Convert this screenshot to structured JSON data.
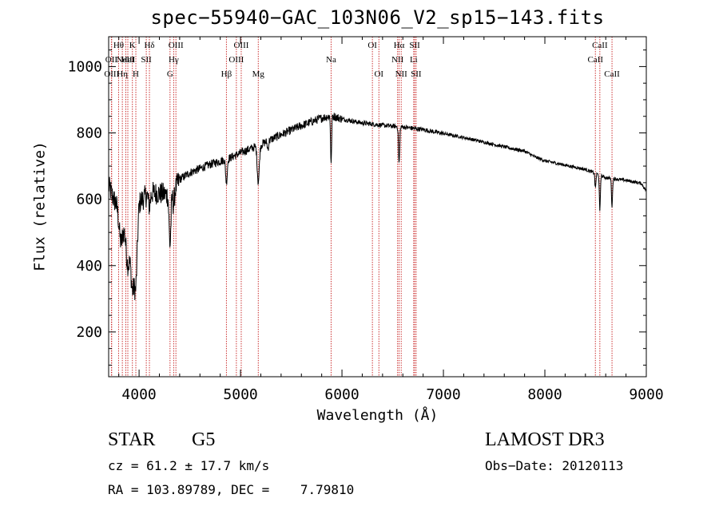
{
  "chart_data": {
    "type": "line",
    "title": "spec−55940−GAC_103N06_V2_sp15−143.fits",
    "xlabel": "Wavelength (Å)",
    "ylabel": "Flux (relative)",
    "xlim": [
      3700,
      9000
    ],
    "ylim": [
      65,
      1090
    ],
    "x_ticks": [
      4000,
      5000,
      6000,
      7000,
      8000,
      9000
    ],
    "x_tick_labels": [
      "4000",
      "5000",
      "6000",
      "7000",
      "8000",
      "9000"
    ],
    "y_ticks": [
      200,
      400,
      600,
      800,
      1000
    ],
    "y_tick_labels": [
      "200",
      "400",
      "600",
      "800",
      "1000"
    ],
    "line_color": "#000000",
    "marker_color": "#cc3333",
    "continuum": [
      [
        3700,
        640
      ],
      [
        3750,
        600
      ],
      [
        3800,
        575
      ],
      [
        3850,
        540
      ],
      [
        3900,
        520
      ],
      [
        3950,
        500
      ],
      [
        4000,
        590
      ],
      [
        4100,
        620
      ],
      [
        4200,
        618
      ],
      [
        4300,
        612
      ],
      [
        4350,
        628
      ],
      [
        4400,
        660
      ],
      [
        4500,
        680
      ],
      [
        4700,
        705
      ],
      [
        4900,
        725
      ],
      [
        5000,
        740
      ],
      [
        5200,
        765
      ],
      [
        5400,
        795
      ],
      [
        5600,
        822
      ],
      [
        5800,
        845
      ],
      [
        5900,
        852
      ],
      [
        6000,
        842
      ],
      [
        6200,
        830
      ],
      [
        6400,
        823
      ],
      [
        6600,
        818
      ],
      [
        6800,
        810
      ],
      [
        7000,
        798
      ],
      [
        7200,
        786
      ],
      [
        7400,
        772
      ],
      [
        7600,
        758
      ],
      [
        7800,
        745
      ],
      [
        7900,
        728
      ],
      [
        8000,
        716
      ],
      [
        8200,
        703
      ],
      [
        8400,
        690
      ],
      [
        8500,
        678
      ],
      [
        8600,
        665
      ],
      [
        8800,
        657
      ],
      [
        8950,
        648
      ],
      [
        9000,
        625
      ]
    ],
    "absorption_lines": [
      {
        "wl": 3820,
        "depth": 90,
        "width": 18
      },
      {
        "wl": 3890,
        "depth": 120,
        "width": 20
      },
      {
        "wl": 3934,
        "depth": 160,
        "width": 14
      },
      {
        "wl": 3968,
        "depth": 190,
        "width": 14
      },
      {
        "wl": 4101,
        "depth": 40,
        "width": 10
      },
      {
        "wl": 4305,
        "depth": 150,
        "width": 9
      },
      {
        "wl": 4340,
        "depth": 40,
        "width": 8
      },
      {
        "wl": 4861,
        "depth": 70,
        "width": 8
      },
      {
        "wl": 5175,
        "depth": 110,
        "width": 10
      },
      {
        "wl": 5270,
        "depth": 25,
        "width": 6
      },
      {
        "wl": 5893,
        "depth": 145,
        "width": 5
      },
      {
        "wl": 6563,
        "depth": 110,
        "width": 6
      },
      {
        "wl": 8498,
        "depth": 45,
        "width": 5
      },
      {
        "wl": 8542,
        "depth": 110,
        "width": 5
      },
      {
        "wl": 8662,
        "depth": 85,
        "width": 5
      }
    ],
    "line_markers": [
      {
        "wl": 3798,
        "label": "Hθ",
        "row": 0
      },
      {
        "wl": 3835,
        "label": "Hη",
        "row": 2
      },
      {
        "wl": 3869,
        "label": "NeIII",
        "row": 1
      },
      {
        "wl": 3889,
        "label": "HeI",
        "row": 1
      },
      {
        "wl": 3934,
        "label": "K",
        "row": 0
      },
      {
        "wl": 3968,
        "label": "H",
        "row": 2
      },
      {
        "wl": 3727,
        "label": "OII",
        "row": 1
      },
      {
        "wl": 3730,
        "label": "OIII",
        "row": 2
      },
      {
        "wl": 4071,
        "label": "SII",
        "row": 1
      },
      {
        "wl": 4102,
        "label": "Hδ",
        "row": 0
      },
      {
        "wl": 4305,
        "label": "G",
        "row": 2
      },
      {
        "wl": 4341,
        "label": "Hγ",
        "row": 1
      },
      {
        "wl": 4363,
        "label": "OIII",
        "row": 0
      },
      {
        "wl": 4861,
        "label": "Hβ",
        "row": 2
      },
      {
        "wl": 4959,
        "label": "OIII",
        "row": 1
      },
      {
        "wl": 5007,
        "label": "OIII",
        "row": 0
      },
      {
        "wl": 5175,
        "label": "Mg",
        "row": 2
      },
      {
        "wl": 5893,
        "label": "Na",
        "row": 1
      },
      {
        "wl": 6300,
        "label": "OI",
        "row": 0
      },
      {
        "wl": 6364,
        "label": "OI",
        "row": 2
      },
      {
        "wl": 6548,
        "label": "NII",
        "row": 1
      },
      {
        "wl": 6563,
        "label": "Hα",
        "row": 0
      },
      {
        "wl": 6584,
        "label": "NII",
        "row": 2
      },
      {
        "wl": 6707,
        "label": "Li",
        "row": 1
      },
      {
        "wl": 6717,
        "label": "SII",
        "row": 0
      },
      {
        "wl": 6731,
        "label": "SII",
        "row": 2
      },
      {
        "wl": 8498,
        "label": "CaII",
        "row": 1
      },
      {
        "wl": 8542,
        "label": "CaII",
        "row": 0
      },
      {
        "wl": 8662,
        "label": "CaII",
        "row": 2
      }
    ]
  },
  "info": {
    "object_class": "STAR",
    "subclass": "G5",
    "survey": "LAMOST DR3",
    "cz_line": "cz = 61.2 ± 17.7 km/s",
    "obs_date": "Obs−Date: 20120113",
    "coords": "RA = 103.89789, DEC =    7.79810"
  }
}
